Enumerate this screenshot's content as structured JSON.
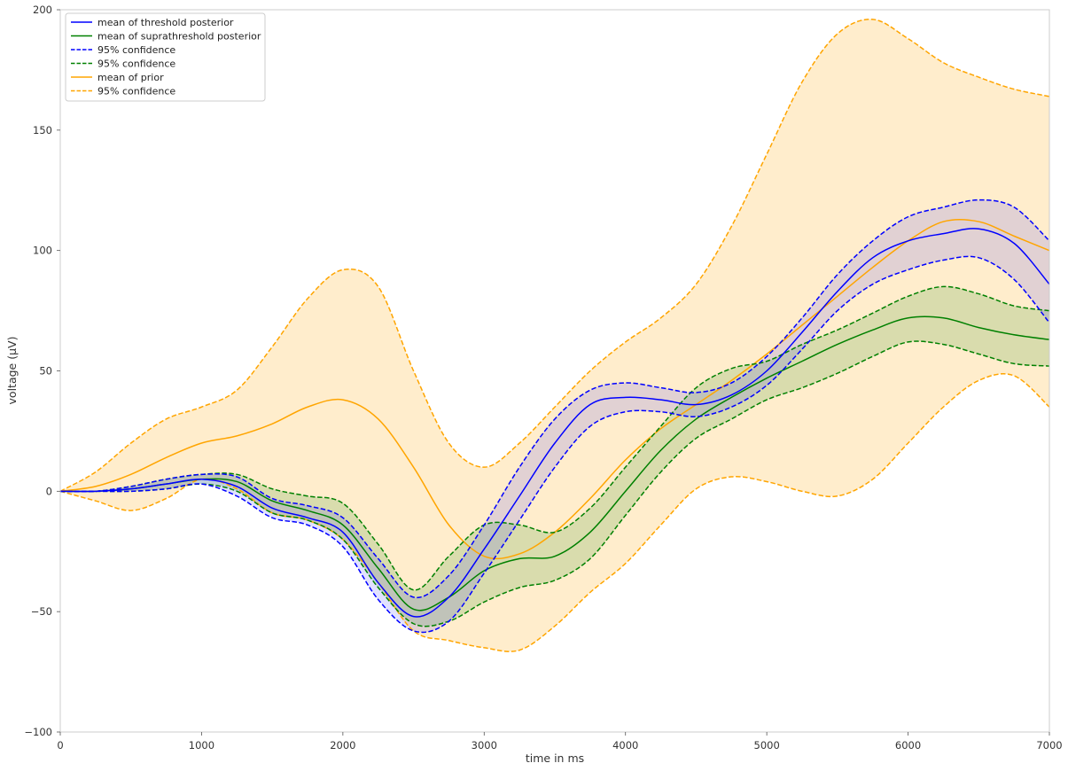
{
  "chart_data": {
    "type": "line",
    "title": "",
    "xlabel": "time in ms",
    "ylabel": "voltage (μV)",
    "xlim": [
      0,
      7000
    ],
    "ylim": [
      -100,
      200
    ],
    "x_ticks": [
      0,
      1000,
      2000,
      3000,
      4000,
      5000,
      6000,
      7000
    ],
    "y_ticks": [
      -100,
      -50,
      0,
      50,
      100,
      150,
      200
    ],
    "x_tick_labels": [
      "0",
      "1000",
      "2000",
      "3000",
      "4000",
      "5000",
      "6000",
      "7000"
    ],
    "y_tick_labels": [
      "−100",
      "−50",
      "0",
      "50",
      "100",
      "150",
      "200"
    ],
    "grid": false,
    "legend_position": "top-left",
    "x": [
      0,
      250,
      500,
      750,
      1000,
      1250,
      1500,
      1750,
      2000,
      2250,
      2500,
      2750,
      3000,
      3250,
      3500,
      3750,
      4000,
      4250,
      4500,
      4750,
      5000,
      5250,
      5500,
      5750,
      6000,
      6250,
      6500,
      6750,
      7000
    ],
    "bands": [
      {
        "series": "prior",
        "color": "#ffa500",
        "opacity": 0.2
      },
      {
        "series": "suprathreshold",
        "color": "#008000",
        "opacity": 0.15
      },
      {
        "series": "threshold",
        "color": "#3333ff",
        "opacity": 0.15
      }
    ],
    "series": [
      {
        "key": "prior",
        "name": "mean of prior",
        "kind": "mean",
        "color": "#ffa500",
        "dash": "solid",
        "values": [
          0,
          2,
          7,
          14,
          20,
          23,
          28,
          35,
          38,
          30,
          10,
          -14,
          -27,
          -26,
          -17,
          -3,
          13,
          26,
          36,
          46,
          57,
          69,
          81,
          93,
          104,
          112,
          112,
          106,
          100
        ]
      },
      {
        "key": "prior_ci",
        "name": "95% confidence",
        "kind": "upper",
        "color": "#ffa500",
        "dash": "dashed",
        "values": [
          0,
          8,
          20,
          30,
          35,
          42,
          60,
          80,
          92,
          85,
          50,
          20,
          10,
          20,
          35,
          50,
          62,
          72,
          86,
          110,
          140,
          170,
          190,
          196,
          188,
          178,
          172,
          167,
          164
        ]
      },
      {
        "key": "prior_ci_lower",
        "name": "95% confidence",
        "kind": "lower",
        "color": "#ffa500",
        "dash": "dashed",
        "values": [
          0,
          -4,
          -8,
          -3,
          5,
          1,
          -9,
          -12,
          -20,
          -38,
          -58,
          -62,
          -65,
          -66,
          -56,
          -42,
          -30,
          -14,
          1,
          6,
          4,
          0,
          -2,
          5,
          20,
          35,
          46,
          48,
          35
        ]
      },
      {
        "key": "threshold",
        "name": "mean of threshold posterior",
        "kind": "mean",
        "color": "#0000ff",
        "dash": "solid",
        "values": [
          0,
          0,
          1,
          3,
          5,
          2,
          -7,
          -11,
          -17,
          -38,
          -52,
          -44,
          -24,
          -2,
          20,
          36,
          39,
          38,
          36,
          40,
          50,
          66,
          83,
          97,
          104,
          107,
          109,
          103,
          86
        ]
      },
      {
        "key": "threshold_ci",
        "name": "95% confidence",
        "kind": "upper",
        "color": "#0000ff",
        "dash": "dashed",
        "values": [
          0,
          0,
          2,
          5,
          7,
          6,
          -3,
          -6,
          -11,
          -28,
          -44,
          -35,
          -14,
          10,
          30,
          42,
          45,
          43,
          41,
          45,
          56,
          72,
          90,
          104,
          114,
          118,
          121,
          118,
          104
        ]
      },
      {
        "key": "threshold_ci_lower",
        "name": "95% confidence",
        "kind": "lower",
        "color": "#0000ff",
        "dash": "dashed",
        "values": [
          0,
          0,
          0,
          1,
          3,
          -2,
          -11,
          -14,
          -23,
          -45,
          -58,
          -54,
          -34,
          -12,
          10,
          27,
          33,
          33,
          31,
          35,
          44,
          59,
          75,
          86,
          92,
          96,
          97,
          88,
          70
        ]
      },
      {
        "key": "suprathreshold",
        "name": "mean of suprathreshold posterior",
        "kind": "mean",
        "color": "#008000",
        "dash": "solid",
        "values": [
          0,
          0,
          1,
          3,
          5,
          4,
          -4,
          -8,
          -14,
          -32,
          -49,
          -44,
          -33,
          -28,
          -27,
          -17,
          0,
          17,
          30,
          39,
          47,
          54,
          61,
          67,
          72,
          72,
          68,
          65,
          63
        ]
      },
      {
        "key": "suprathreshold_ci",
        "name": "95% confidence",
        "kind": "upper",
        "color": "#008000",
        "dash": "dashed",
        "values": [
          0,
          0,
          2,
          5,
          7,
          7,
          1,
          -2,
          -5,
          -22,
          -41,
          -27,
          -14,
          -14,
          -17,
          -7,
          10,
          27,
          43,
          51,
          54,
          61,
          67,
          74,
          81,
          85,
          82,
          77,
          75
        ]
      },
      {
        "key": "suprathreshold_ci_lower",
        "name": "95% confidence",
        "kind": "lower",
        "color": "#008000",
        "dash": "dashed",
        "values": [
          0,
          0,
          0,
          1,
          3,
          0,
          -9,
          -12,
          -20,
          -40,
          -55,
          -54,
          -46,
          -40,
          -37,
          -28,
          -10,
          8,
          22,
          30,
          38,
          43,
          49,
          56,
          62,
          61,
          57,
          53,
          52
        ]
      }
    ],
    "legend": [
      {
        "label": "mean of threshold posterior",
        "color": "#0000ff",
        "dash": "solid"
      },
      {
        "label": "mean of suprathreshold posterior",
        "color": "#008000",
        "dash": "solid"
      },
      {
        "label": "95% confidence",
        "color": "#0000ff",
        "dash": "dashed"
      },
      {
        "label": "95% confidence",
        "color": "#008000",
        "dash": "dashed"
      },
      {
        "label": "mean of prior",
        "color": "#ffa500",
        "dash": "solid"
      },
      {
        "label": "95% confidence",
        "color": "#ffa500",
        "dash": "dashed"
      }
    ]
  }
}
